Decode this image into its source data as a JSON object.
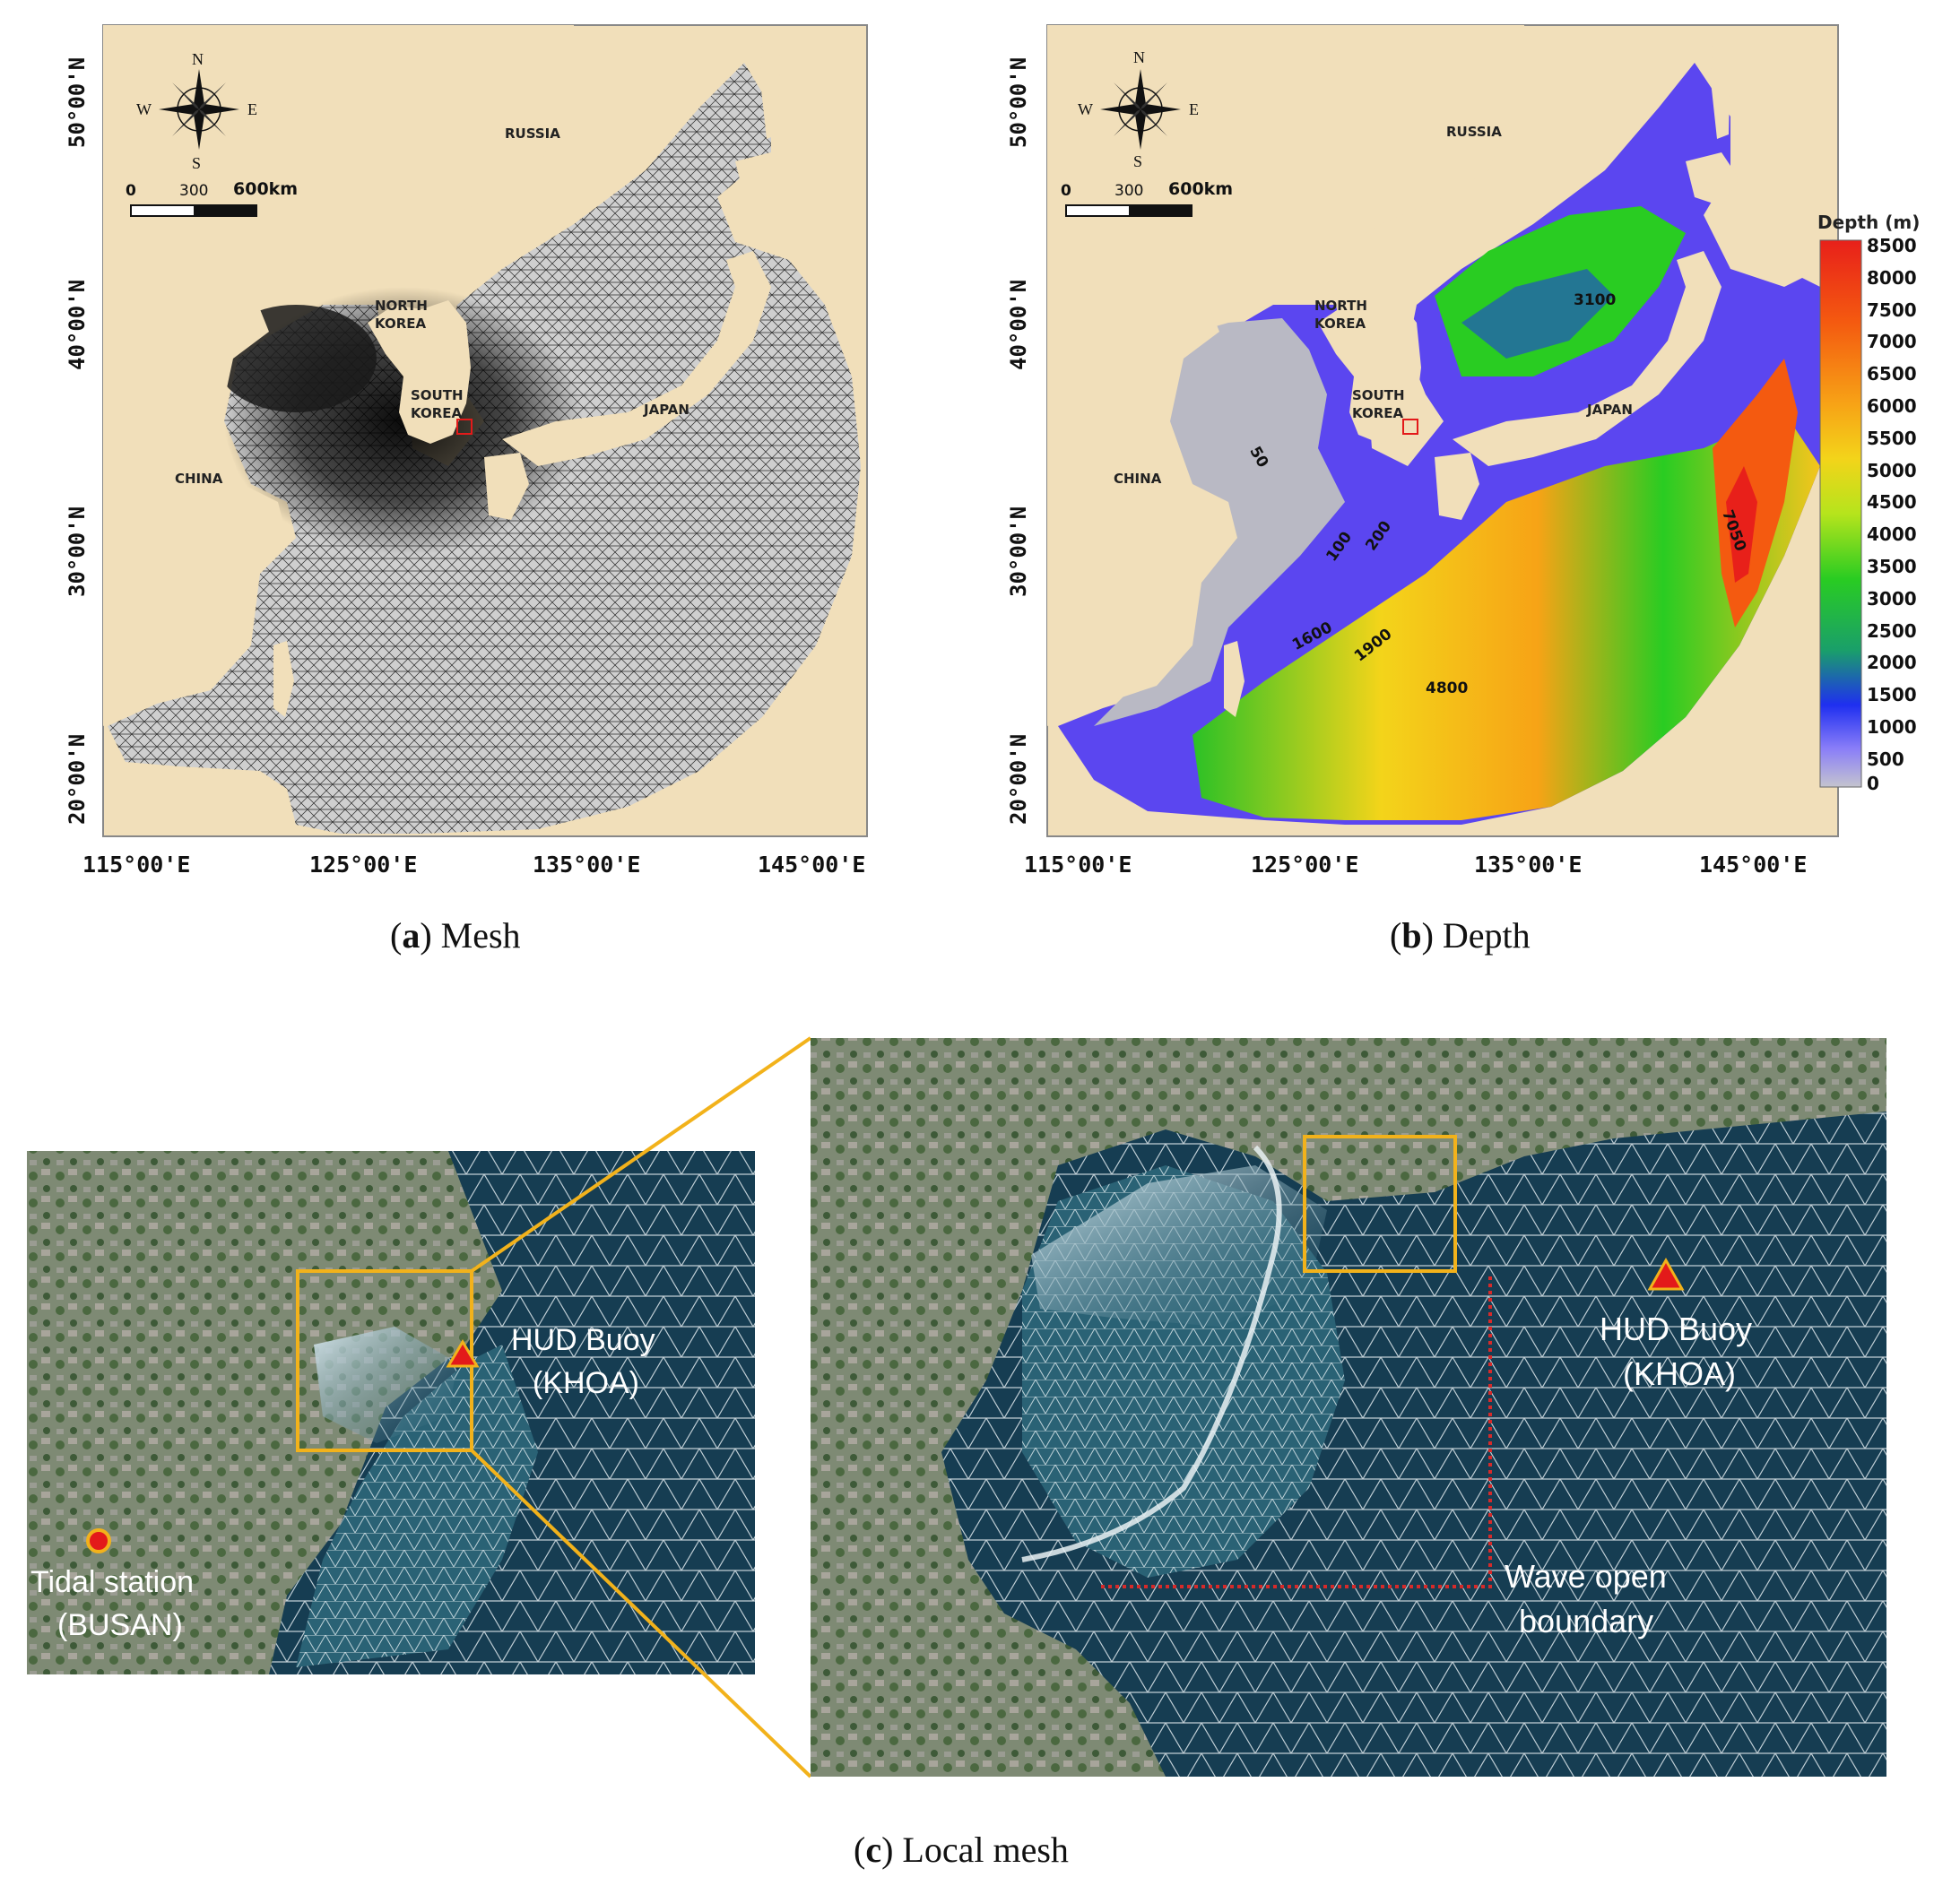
{
  "panel_a": {
    "caption_letter": "a",
    "caption_text": "Mesh",
    "countries": {
      "russia": "RUSSIA",
      "north_korea_1": "NORTH",
      "north_korea_2": "KOREA",
      "south_korea_1": "SOUTH",
      "south_korea_2": "KOREA",
      "japan": "JAPAN",
      "china": "CHINA"
    },
    "lat_labels": [
      "50°00'N",
      "40°00'N",
      "30°00'N",
      "20°00'N"
    ],
    "lon_labels": [
      "115°00'E",
      "125°00'E",
      "135°00'E",
      "145°00'E"
    ],
    "compass": {
      "n": "N",
      "s": "S",
      "e": "E",
      "w": "W"
    },
    "scale": {
      "zero": "0",
      "mid": "300",
      "end": "600km"
    }
  },
  "panel_b": {
    "caption_letter": "b",
    "caption_text": "Depth",
    "countries": {
      "russia": "RUSSIA",
      "north_korea_1": "NORTH",
      "north_korea_2": "KOREA",
      "south_korea_1": "SOUTH",
      "south_korea_2": "KOREA",
      "japan": "JAPAN",
      "china": "CHINA"
    },
    "lat_labels": [
      "50°00'N",
      "40°00'N",
      "30°00'N",
      "20°00'N"
    ],
    "lon_labels": [
      "115°00'E",
      "125°00'E",
      "135°00'E",
      "145°00'E"
    ],
    "compass": {
      "n": "N",
      "s": "S",
      "e": "E",
      "w": "W"
    },
    "scale": {
      "zero": "0",
      "mid": "300",
      "end": "600km"
    },
    "contour_labels": [
      "50",
      "100",
      "200",
      "1600",
      "1900",
      "3100",
      "4800",
      "7050"
    ],
    "colorbar": {
      "title": "Depth (m)",
      "ticks": [
        "8500",
        "8000",
        "7500",
        "7000",
        "6500",
        "6000",
        "5500",
        "5000",
        "4500",
        "4000",
        "3500",
        "3000",
        "2500",
        "2000",
        "1500",
        "1000",
        "500",
        "0"
      ],
      "colors": [
        "#e8201a",
        "#f45a10",
        "#f7a316",
        "#f3d41a",
        "#b6e41c",
        "#29cc22",
        "#1a9f6a",
        "#1f2ff0",
        "#8a7ef8",
        "#c4c4cf"
      ]
    }
  },
  "panel_c": {
    "caption_letter": "c",
    "caption_text": "Local mesh",
    "left_inset": {
      "buoy_line1": "HUD Buoy",
      "buoy_line2": "(KHOA)",
      "tide_line1": "Tidal station",
      "tide_line2": "(BUSAN)"
    },
    "right_inset": {
      "buoy_line1": "HUD Buoy",
      "buoy_line2": "(KHOA)",
      "boundary_line1": "Wave open",
      "boundary_line2": "boundary"
    },
    "colors": {
      "zoom_frame": "#f2b21b",
      "buoy_marker": "#e31a1a",
      "tide_marker": "#e31a1a",
      "boundary": "#d62a2a"
    }
  }
}
